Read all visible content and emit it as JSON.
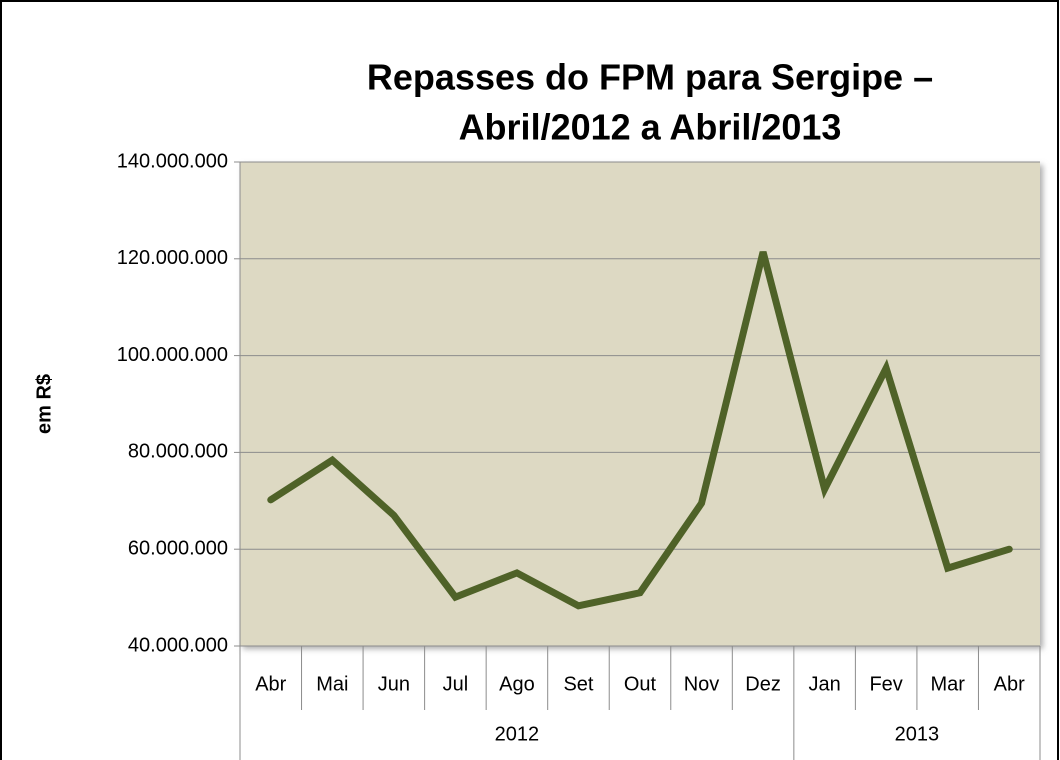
{
  "chart_data": {
    "type": "line",
    "title": [
      "Repasses do FPM para Sergipe –",
      "Abril/2012 a Abril/2013"
    ],
    "y_label": "em R$",
    "categories": [
      "Abr",
      "Mai",
      "Jun",
      "Jul",
      "Ago",
      "Set",
      "Out",
      "Nov",
      "Dez",
      "Jan",
      "Fev",
      "Mar",
      "Abr"
    ],
    "category_groups": [
      {
        "label": "2012",
        "size": 9
      },
      {
        "label": "2013",
        "size": 4
      }
    ],
    "series": [
      {
        "name": "Repasses",
        "color": "#4f6228",
        "values": [
          70200000,
          78400000,
          67000000,
          50100000,
          55100000,
          48300000,
          51000000,
          69500000,
          121400000,
          72400000,
          97400000,
          56100000,
          60000000
        ]
      }
    ],
    "ylim": [
      40000000,
      140000000
    ],
    "yticks": [
      {
        "value": 40000000,
        "label": "40.000.000"
      },
      {
        "value": 60000000,
        "label": "60.000.000"
      },
      {
        "value": 80000000,
        "label": "80.000.000"
      },
      {
        "value": 100000000,
        "label": "100.000.000"
      },
      {
        "value": 120000000,
        "label": "120.000.000"
      },
      {
        "value": 140000000,
        "label": "140.000.000"
      }
    ],
    "grid": true,
    "plot_background": "#ddd9c3"
  }
}
